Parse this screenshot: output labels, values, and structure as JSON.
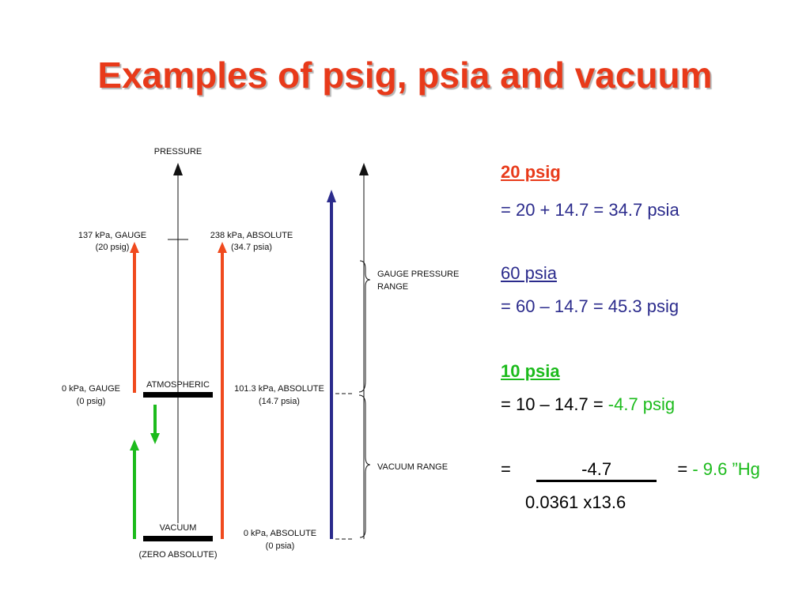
{
  "title": "Examples of psig, psia and vacuum",
  "colors": {
    "title": "#e83a1a",
    "blue": "#2b2b8c",
    "green": "#1cbb1c",
    "red": "#f04a1e"
  },
  "diagram": {
    "pressure_label": "PRESSURE",
    "gauge_137_line1": "137 kPa, GAUGE",
    "gauge_137_line2": "(20 psig)",
    "abs_238_line1": "238 kPa, ABSOLUTE",
    "abs_238_line2": "(34.7 psia)",
    "gauge_range_line1": "GAUGE PRESSURE",
    "gauge_range_line2": "RANGE",
    "gauge_0_line1": "0 kPa, GAUGE",
    "gauge_0_line2": "(0 psig)",
    "atmospheric": "ATMOSPHERIC",
    "abs_101_line1": "101.3 kPa, ABSOLUTE",
    "abs_101_line2": "(14.7 psia)",
    "vacuum_range": "VACUUM RANGE",
    "vacuum": "VACUUM",
    "zero_absolute": "(ZERO ABSOLUTE)",
    "abs_0_line1": "0 kPa, ABSOLUTE",
    "abs_0_line2": "(0 psia)"
  },
  "notes": {
    "ex1_heading": "20 psig",
    "ex1_calc": "= 20 + 14.7 = 34.7 psia",
    "ex2_heading": "60 psia",
    "ex2_calc": "= 60 – 14.7 = 45.3 psig",
    "ex3_heading": "10 psia",
    "ex3_calc_prefix": "= 10 – 14.7 = ",
    "ex3_calc_result": "-4.7 psig",
    "frac_eq": "=",
    "frac_numerator": "-4.7",
    "frac_denominator": "0.0361 x13.6",
    "frac_result_eq": "= ",
    "frac_result": "- 9.6 ”Hg"
  }
}
